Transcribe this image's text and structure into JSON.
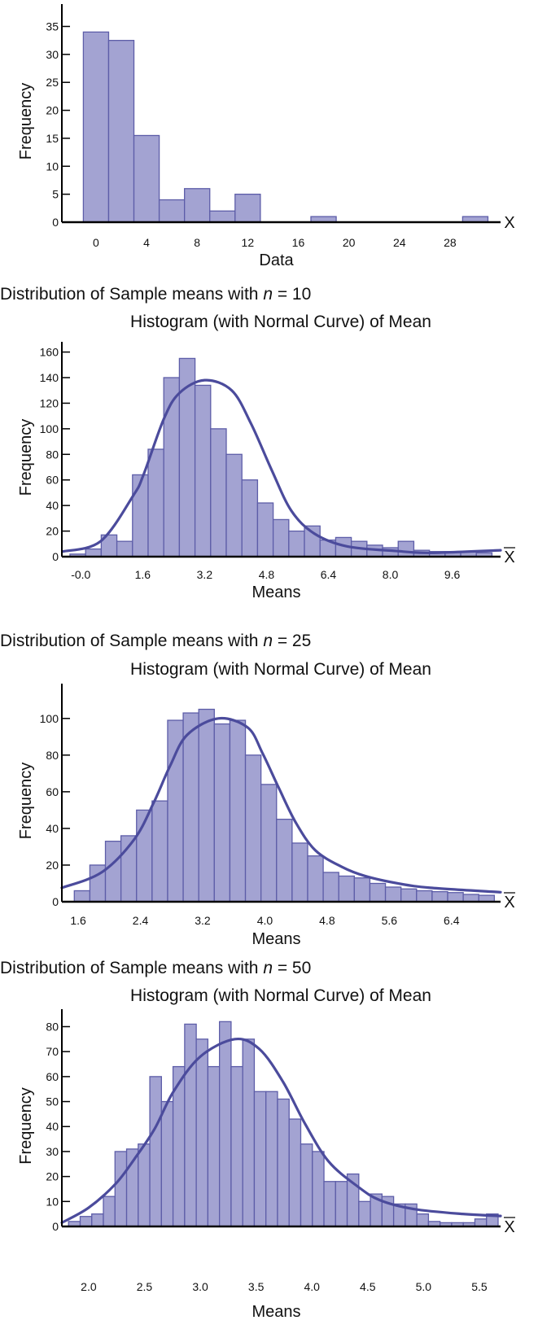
{
  "colors": {
    "bar_fill": "#a3a3d2",
    "bar_stroke": "#5d5da8",
    "curve": "#4b4b9c",
    "axis": "#000000"
  },
  "chart_data": [
    {
      "type": "bar",
      "title": "",
      "subtitle": "",
      "xlabel": "Data",
      "ylabel": "Frequency",
      "axis_end_label": "X",
      "axis_end_overline": false,
      "xlim": [
        -2.7,
        32
      ],
      "ylim": [
        0,
        39
      ],
      "x_ticks": [
        0,
        4,
        8,
        12,
        16,
        20,
        24,
        28
      ],
      "x_tick_labels": [
        "0",
        "4",
        "8",
        "12",
        "16",
        "20",
        "24",
        "28"
      ],
      "y_ticks": [
        0,
        5,
        10,
        15,
        20,
        25,
        30,
        35
      ],
      "bin_start": -1,
      "bin_width": 2,
      "values": [
        34,
        32.5,
        15.5,
        4,
        6,
        2,
        5,
        0,
        0,
        1,
        0,
        0,
        0,
        0,
        0,
        1
      ]
    },
    {
      "type": "bar",
      "title_prefix": "Distribution of Sample means with ",
      "title_var": "n",
      "title_suffix": " = 10",
      "subtitle": "Histogram (with Normal Curve) of Mean",
      "xlabel": "Means",
      "ylabel": "Frequency",
      "axis_end_label": "X",
      "axis_end_overline": true,
      "xlim": [
        -0.49,
        10.85
      ],
      "ylim": [
        0,
        168
      ],
      "x_ticks": [
        0,
        1.6,
        3.2,
        4.8,
        6.4,
        8.0,
        9.6
      ],
      "x_tick_labels": [
        "-0.0",
        "1.6",
        "3.2",
        "4.8",
        "6.4",
        "8.0",
        "9.6"
      ],
      "y_ticks": [
        0,
        20,
        40,
        60,
        80,
        100,
        120,
        140,
        160
      ],
      "bin_start": -0.28,
      "bin_width": 0.404,
      "values": [
        2,
        6,
        17,
        12,
        64,
        84,
        140,
        155,
        134,
        100,
        80,
        60,
        42,
        29,
        20,
        24,
        13,
        15,
        12,
        9,
        7,
        12,
        5,
        4,
        4,
        4,
        3
      ],
      "curve": [
        [
          -0.47,
          4
        ],
        [
          0.51,
          12
        ],
        [
          1.36,
          48
        ],
        [
          1.62,
          64
        ],
        [
          2.15,
          108
        ],
        [
          2.55,
          128
        ],
        [
          3.2,
          138
        ],
        [
          3.9,
          130
        ],
        [
          4.4,
          104
        ],
        [
          4.93,
          68
        ],
        [
          5.44,
          36
        ],
        [
          6.04,
          18
        ],
        [
          6.89,
          8
        ],
        [
          8.17,
          4.4
        ],
        [
          9.02,
          3
        ],
        [
          10.85,
          5
        ]
      ]
    },
    {
      "type": "bar",
      "title_prefix": "Distribution of Sample means with ",
      "title_var": "n",
      "title_suffix": " = 25",
      "subtitle": "Histogram (with Normal Curve) of Mean",
      "xlabel": "Means",
      "ylabel": "Frequency",
      "axis_end_label": "X",
      "axis_end_overline": true,
      "xlim": [
        1.39,
        7.03
      ],
      "ylim": [
        0,
        119
      ],
      "x_ticks": [
        1.6,
        2.4,
        3.2,
        4.0,
        4.8,
        5.6,
        6.4
      ],
      "x_tick_labels": [
        "1.6",
        "2.4",
        "3.2",
        "4.0",
        "4.8",
        "5.6",
        "6.4"
      ],
      "y_ticks": [
        0,
        20,
        40,
        60,
        80,
        100
      ],
      "bin_start": 1.55,
      "bin_width": 0.2,
      "values": [
        6,
        20,
        33,
        36,
        50,
        55,
        99,
        103,
        105,
        97,
        99,
        80,
        64,
        45,
        32,
        25,
        16,
        14,
        13,
        10,
        8,
        7,
        6,
        5.5,
        5,
        4,
        3.5
      ],
      "curve": [
        [
          1.39,
          7.6
        ],
        [
          1.9,
          16
        ],
        [
          2.32,
          34
        ],
        [
          2.57,
          54
        ],
        [
          2.78,
          74
        ],
        [
          3.0,
          91
        ],
        [
          3.4,
          100
        ],
        [
          3.78,
          95
        ],
        [
          3.97,
          81
        ],
        [
          4.18,
          62
        ],
        [
          4.4,
          43
        ],
        [
          4.65,
          28
        ],
        [
          4.99,
          19
        ],
        [
          5.29,
          14
        ],
        [
          5.71,
          10
        ],
        [
          6.13,
          7.6
        ],
        [
          7.03,
          5.2
        ]
      ]
    },
    {
      "type": "bar",
      "title_prefix": "Distribution of Sample means with ",
      "title_var": "n",
      "title_suffix": " = 50",
      "subtitle": "Histogram (with Normal Curve) of Mean",
      "xlabel": "Means",
      "ylabel": "Frequency",
      "axis_end_label": "X",
      "axis_end_overline": true,
      "xlim": [
        1.76,
        5.69
      ],
      "ylim": [
        0,
        87
      ],
      "x_ticks": [
        2.0,
        2.5,
        3.0,
        3.5,
        4.0,
        4.5,
        5.0,
        5.5
      ],
      "x_tick_labels": [
        "2.0",
        "2.5",
        "3.0",
        "3.5",
        "4.0",
        "4.5",
        "5.0",
        "5.5"
      ],
      "y_ticks": [
        0,
        10,
        20,
        30,
        40,
        50,
        60,
        70,
        80
      ],
      "bin_start": 1.82,
      "bin_width": 0.104,
      "values": [
        2,
        4,
        5,
        12,
        30,
        31,
        33,
        60,
        50,
        64,
        81,
        75,
        64,
        82,
        64,
        75,
        54,
        54,
        51,
        43,
        33,
        30,
        18,
        18,
        21,
        10,
        13,
        12,
        9,
        9,
        5,
        2,
        1.5,
        1.5,
        1.5,
        3,
        5
      ],
      "curve": [
        [
          1.76,
          1.5
        ],
        [
          2.0,
          7.5
        ],
        [
          2.24,
          17
        ],
        [
          2.41,
          27
        ],
        [
          2.59,
          39
        ],
        [
          2.76,
          54
        ],
        [
          3.0,
          68
        ],
        [
          3.31,
          75
        ],
        [
          3.53,
          71
        ],
        [
          3.74,
          58
        ],
        [
          3.94,
          41
        ],
        [
          4.15,
          26
        ],
        [
          4.41,
          16
        ],
        [
          4.61,
          10.5
        ],
        [
          4.91,
          7
        ],
        [
          5.35,
          5
        ],
        [
          5.69,
          4.2
        ]
      ]
    }
  ]
}
